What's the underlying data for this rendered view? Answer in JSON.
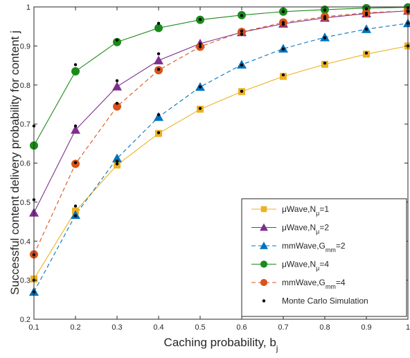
{
  "chart_data": {
    "type": "line",
    "title": "",
    "xlabel": "Caching probability, b",
    "xlabel_sub": "j",
    "ylabel": "Successful content delivery probability for content j",
    "xlim": [
      0.1,
      1.0
    ],
    "ylim": [
      0.2,
      1.0
    ],
    "x_ticks": [
      "0.1",
      "0.2",
      "0.3",
      "0.4",
      "0.5",
      "0.6",
      "0.7",
      "0.8",
      "0.9",
      "1"
    ],
    "y_ticks": [
      "0.2",
      "0.3",
      "0.4",
      "0.5",
      "0.6",
      "0.7",
      "0.8",
      "0.9",
      "1"
    ],
    "grid": false,
    "legend_position": "bottom-right",
    "x": [
      0.1,
      0.2,
      0.3,
      0.4,
      0.5,
      0.6,
      0.7,
      0.8,
      0.9,
      1.0
    ],
    "series": [
      {
        "name": "μWave,N",
        "sub": "μ",
        "suffix": "=1",
        "color": "#EDB120",
        "marker": "square",
        "dash": "solid",
        "values": [
          0.303,
          0.477,
          0.595,
          0.676,
          0.738,
          0.783,
          0.822,
          0.853,
          0.879,
          0.9
        ]
      },
      {
        "name": "μWave,N",
        "sub": "μ",
        "suffix": "=2",
        "color": "#7E2F8E",
        "marker": "triangle",
        "dash": "solid",
        "values": [
          0.473,
          0.685,
          0.796,
          0.863,
          0.906,
          0.935,
          0.957,
          0.972,
          0.983,
          0.99
        ]
      },
      {
        "name": "mmWave,G",
        "sub": "mm",
        "suffix": "=2",
        "color": "#0072BD",
        "marker": "triangle",
        "dash": "dashed",
        "values": [
          0.27,
          0.467,
          0.612,
          0.718,
          0.795,
          0.852,
          0.893,
          0.922,
          0.943,
          0.958
        ]
      },
      {
        "name": "μWave,N",
        "sub": "μ",
        "suffix": "=4",
        "color": "#1A8A1A",
        "marker": "circle",
        "dash": "solid",
        "values": [
          0.645,
          0.835,
          0.91,
          0.946,
          0.967,
          0.979,
          0.988,
          0.993,
          0.997,
          0.999
        ]
      },
      {
        "name": "mmWave,G",
        "sub": "mm",
        "suffix": "=4",
        "color": "#D95319",
        "marker": "circle",
        "dash": "dashed",
        "values": [
          0.366,
          0.598,
          0.745,
          0.838,
          0.898,
          0.936,
          0.96,
          0.975,
          0.985,
          0.99
        ]
      },
      {
        "name": "Monte Carlo Simulation",
        "sub": "",
        "suffix": "",
        "color": "#000000",
        "marker": "dot",
        "dash": "none",
        "points": [
          [
            0.1,
            0.695
          ],
          [
            0.2,
            0.852
          ],
          [
            0.3,
            0.915
          ],
          [
            0.4,
            0.958
          ],
          [
            0.5,
            0.968
          ],
          [
            0.6,
            0.978
          ],
          [
            0.7,
            0.988
          ],
          [
            0.8,
            0.992
          ],
          [
            0.9,
            0.995
          ],
          [
            1.0,
            0.998
          ],
          [
            0.1,
            0.506
          ],
          [
            0.2,
            0.695
          ],
          [
            0.3,
            0.811
          ],
          [
            0.4,
            0.88
          ],
          [
            0.5,
            0.905
          ],
          [
            0.6,
            0.93
          ],
          [
            0.7,
            0.955
          ],
          [
            0.8,
            0.97
          ],
          [
            0.9,
            0.98
          ],
          [
            1.0,
            0.988
          ],
          [
            0.1,
            0.365
          ],
          [
            0.2,
            0.601
          ],
          [
            0.3,
            0.753
          ],
          [
            0.4,
            0.84
          ],
          [
            0.5,
            0.898
          ],
          [
            0.6,
            0.938
          ],
          [
            0.7,
            0.96
          ],
          [
            0.8,
            0.975
          ],
          [
            0.9,
            0.984
          ],
          [
            1.0,
            0.99
          ],
          [
            0.1,
            0.27
          ],
          [
            0.2,
            0.465
          ],
          [
            0.3,
            0.605
          ],
          [
            0.4,
            0.724
          ],
          [
            0.5,
            0.795
          ],
          [
            0.6,
            0.851
          ],
          [
            0.7,
            0.892
          ],
          [
            0.8,
            0.921
          ],
          [
            0.9,
            0.943
          ],
          [
            1.0,
            0.958
          ],
          [
            0.1,
            0.3
          ],
          [
            0.2,
            0.49
          ],
          [
            0.3,
            0.598
          ],
          [
            0.4,
            0.678
          ],
          [
            0.5,
            0.74
          ],
          [
            0.6,
            0.784
          ],
          [
            0.7,
            0.826
          ],
          [
            0.8,
            0.856
          ],
          [
            0.9,
            0.882
          ],
          [
            1.0,
            0.9
          ]
        ]
      }
    ]
  }
}
